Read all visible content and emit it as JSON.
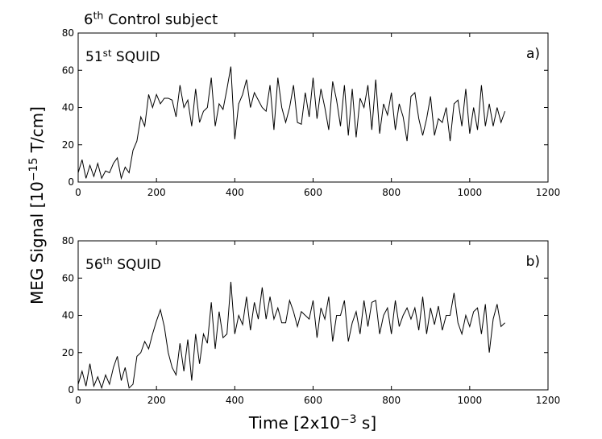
{
  "figure": {
    "title": [
      "6",
      "th",
      " Control subject"
    ],
    "ylabel": [
      "MEG Signal [10",
      "−15",
      " T/cm]"
    ],
    "xlabel": [
      "Time [2x10",
      "−3",
      " s]"
    ]
  },
  "chart_data": [
    {
      "type": "line",
      "annotation": [
        "51",
        "st",
        "  SQUID"
      ],
      "panel_label": "a)",
      "x": [
        0,
        10,
        20,
        30,
        40,
        50,
        60,
        70,
        80,
        90,
        100,
        110,
        120,
        130,
        140,
        150,
        160,
        170,
        180,
        190,
        200,
        210,
        220,
        230,
        240,
        250,
        260,
        270,
        280,
        290,
        300,
        310,
        320,
        330,
        340,
        350,
        360,
        370,
        380,
        390,
        400,
        410,
        420,
        430,
        440,
        450,
        460,
        470,
        480,
        490,
        500,
        510,
        520,
        530,
        540,
        550,
        560,
        570,
        580,
        590,
        600,
        610,
        620,
        630,
        640,
        650,
        660,
        670,
        680,
        690,
        700,
        710,
        720,
        730,
        740,
        750,
        760,
        770,
        780,
        790,
        800,
        810,
        820,
        830,
        840,
        850,
        860,
        870,
        880,
        890,
        900,
        910,
        920,
        930,
        940,
        950,
        960,
        970,
        980,
        990,
        1000,
        1010,
        1020,
        1030,
        1040,
        1050,
        1060,
        1070,
        1080,
        1090
      ],
      "series": [
        {
          "color": "#000000",
          "values": [
            5,
            12,
            2,
            9,
            3,
            10,
            2,
            6,
            5,
            10,
            13,
            2,
            8,
            5,
            17,
            22,
            35,
            30,
            47,
            40,
            47,
            42,
            45,
            45,
            44,
            35,
            52,
            40,
            44,
            30,
            50,
            32,
            38,
            40,
            56,
            30,
            42,
            39,
            50,
            62,
            23,
            42,
            47,
            55,
            40,
            48,
            44,
            40,
            38,
            52,
            28,
            56,
            40,
            32,
            40,
            52,
            32,
            31,
            48,
            35,
            56,
            34,
            50,
            40,
            28,
            54,
            44,
            30,
            52,
            25,
            50,
            24,
            45,
            40,
            52,
            28,
            55,
            26,
            42,
            36,
            48,
            28,
            42,
            35,
            22,
            46,
            48,
            34,
            25,
            34,
            46,
            25,
            34,
            32,
            40,
            22,
            42,
            44,
            30,
            50,
            26,
            40,
            28,
            52,
            30,
            42,
            30,
            40,
            32,
            38
          ]
        }
      ],
      "xlim": [
        0,
        1200
      ],
      "ylim": [
        0,
        80
      ],
      "xticks": [
        0,
        200,
        400,
        600,
        800,
        1000,
        1200
      ],
      "yticks": [
        0,
        20,
        40,
        60,
        80
      ]
    },
    {
      "type": "line",
      "annotation": [
        "56",
        "th",
        " SQUID"
      ],
      "panel_label": "b)",
      "x": [
        0,
        10,
        20,
        30,
        40,
        50,
        60,
        70,
        80,
        90,
        100,
        110,
        120,
        130,
        140,
        150,
        160,
        170,
        180,
        190,
        200,
        210,
        220,
        230,
        240,
        250,
        260,
        270,
        280,
        290,
        300,
        310,
        320,
        330,
        340,
        350,
        360,
        370,
        380,
        390,
        400,
        410,
        420,
        430,
        440,
        450,
        460,
        470,
        480,
        490,
        500,
        510,
        520,
        530,
        540,
        550,
        560,
        570,
        580,
        590,
        600,
        610,
        620,
        630,
        640,
        650,
        660,
        670,
        680,
        690,
        700,
        710,
        720,
        730,
        740,
        750,
        760,
        770,
        780,
        790,
        800,
        810,
        820,
        830,
        840,
        850,
        860,
        870,
        880,
        890,
        900,
        910,
        920,
        930,
        940,
        950,
        960,
        970,
        980,
        990,
        1000,
        1010,
        1020,
        1030,
        1040,
        1050,
        1060,
        1070,
        1080,
        1090
      ],
      "series": [
        {
          "color": "#000000",
          "values": [
            3,
            10,
            2,
            14,
            2,
            7,
            1,
            8,
            3,
            12,
            18,
            5,
            12,
            1,
            3,
            18,
            20,
            26,
            22,
            30,
            37,
            43,
            34,
            20,
            12,
            8,
            25,
            10,
            27,
            5,
            30,
            14,
            30,
            25,
            47,
            22,
            42,
            28,
            30,
            58,
            30,
            40,
            35,
            50,
            32,
            47,
            38,
            55,
            38,
            50,
            38,
            44,
            36,
            36,
            48,
            42,
            34,
            42,
            40,
            38,
            48,
            28,
            44,
            38,
            50,
            26,
            40,
            40,
            48,
            26,
            36,
            42,
            30,
            48,
            34,
            47,
            48,
            30,
            40,
            44,
            30,
            48,
            34,
            40,
            44,
            38,
            44,
            32,
            50,
            30,
            44,
            35,
            45,
            32,
            40,
            40,
            52,
            36,
            30,
            40,
            34,
            42,
            44,
            30,
            46,
            20,
            38,
            46,
            34,
            36
          ]
        }
      ],
      "xlim": [
        0,
        1200
      ],
      "ylim": [
        0,
        80
      ],
      "xticks": [
        0,
        200,
        400,
        600,
        800,
        1000,
        1200
      ],
      "yticks": [
        0,
        20,
        40,
        60,
        80
      ]
    }
  ]
}
